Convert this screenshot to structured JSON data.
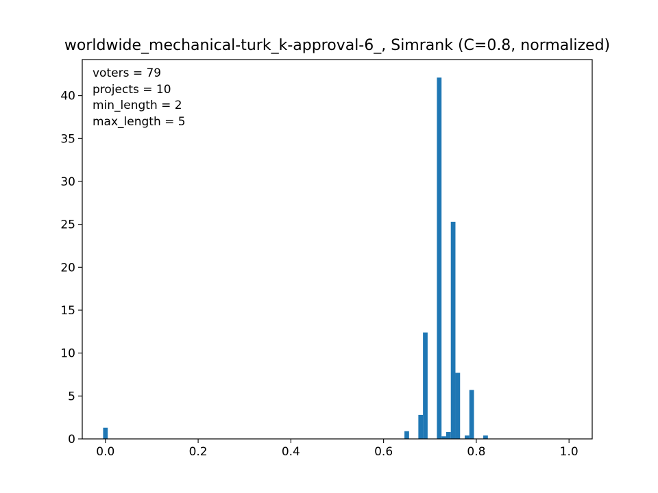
{
  "chart_data": {
    "type": "bar",
    "subtype": "histogram",
    "title": "worldwide_mechanical-turk_k-approval-6_, Simrank (C=0.8, normalized)",
    "xlabel": "",
    "ylabel": "",
    "xlim": [
      -0.05,
      1.05
    ],
    "ylim": [
      0,
      44.2
    ],
    "xticks": [
      0.0,
      0.2,
      0.4,
      0.6,
      0.8,
      1.0
    ],
    "xtick_labels": [
      "0.0",
      "0.2",
      "0.4",
      "0.6",
      "0.8",
      "1.0"
    ],
    "yticks": [
      0,
      5,
      10,
      15,
      20,
      25,
      30,
      35,
      40
    ],
    "ytick_labels": [
      "0",
      "5",
      "10",
      "15",
      "20",
      "25",
      "30",
      "35",
      "40"
    ],
    "bin_width": 0.01,
    "color": "#1f77b4",
    "grid": false,
    "bins": [
      {
        "x": 0.0,
        "value": 1.3
      },
      {
        "x": 0.65,
        "value": 0.9
      },
      {
        "x": 0.68,
        "value": 2.8
      },
      {
        "x": 0.69,
        "value": 12.4
      },
      {
        "x": 0.72,
        "value": 42.1
      },
      {
        "x": 0.73,
        "value": 0.3
      },
      {
        "x": 0.74,
        "value": 0.8
      },
      {
        "x": 0.75,
        "value": 25.3
      },
      {
        "x": 0.76,
        "value": 7.7
      },
      {
        "x": 0.78,
        "value": 0.4
      },
      {
        "x": 0.79,
        "value": 5.7
      },
      {
        "x": 0.82,
        "value": 0.4
      }
    ],
    "annotations": [
      "voters = 79",
      "projects = 10",
      "min_length = 2",
      "max_length = 5"
    ]
  }
}
